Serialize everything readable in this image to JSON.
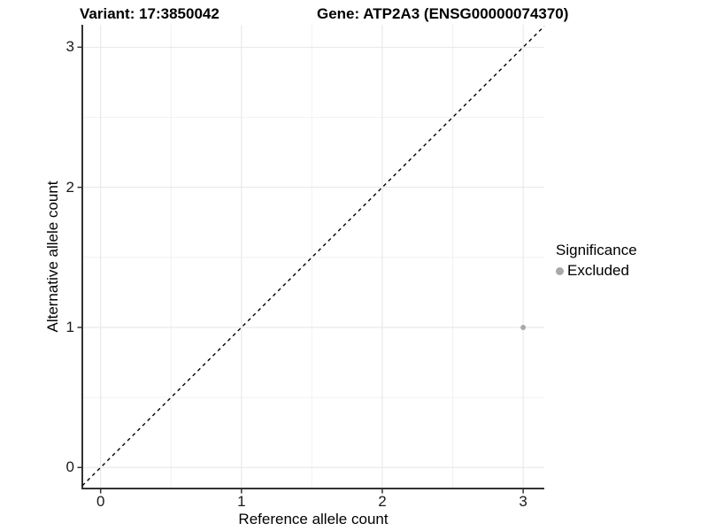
{
  "titles": {
    "variant": "Variant: 17:3850042",
    "gene": "Gene: ATP2A3 (ENSG00000074370)"
  },
  "chart_data": {
    "type": "scatter",
    "title_left": "Variant: 17:3850042",
    "title_right": "Gene: ATP2A3 (ENSG00000074370)",
    "xlabel": "Reference allele count",
    "ylabel": "Alternative allele count",
    "xlim": [
      -0.13,
      3.15
    ],
    "ylim": [
      -0.15,
      3.16
    ],
    "x_ticks": [
      0,
      1,
      2,
      3
    ],
    "y_ticks": [
      0,
      1,
      2,
      3
    ],
    "x_minor_gridlines": [
      0.5,
      1.5,
      2.5
    ],
    "y_minor_gridlines": [
      0.5,
      1.5,
      2.5
    ],
    "grid": true,
    "reference_line": {
      "type": "identity",
      "slope": 1,
      "intercept": 0,
      "style": "dashed",
      "color": "#000000"
    },
    "series": [
      {
        "name": "Excluded",
        "color": "#a9a9a9",
        "points": [
          {
            "x": 3,
            "y": 1
          }
        ]
      }
    ],
    "legend": {
      "title": "Significance",
      "position": "right",
      "items": [
        {
          "label": "Excluded",
          "color": "#a9a9a9"
        }
      ]
    }
  },
  "colors": {
    "background": "#ffffff",
    "grid_major": "#e6e6e6",
    "grid_minor": "#f2f2f2",
    "axis_line": "#333333",
    "tick_mark": "#333333",
    "point": "#a9a9a9",
    "reference_line": "#000000"
  }
}
